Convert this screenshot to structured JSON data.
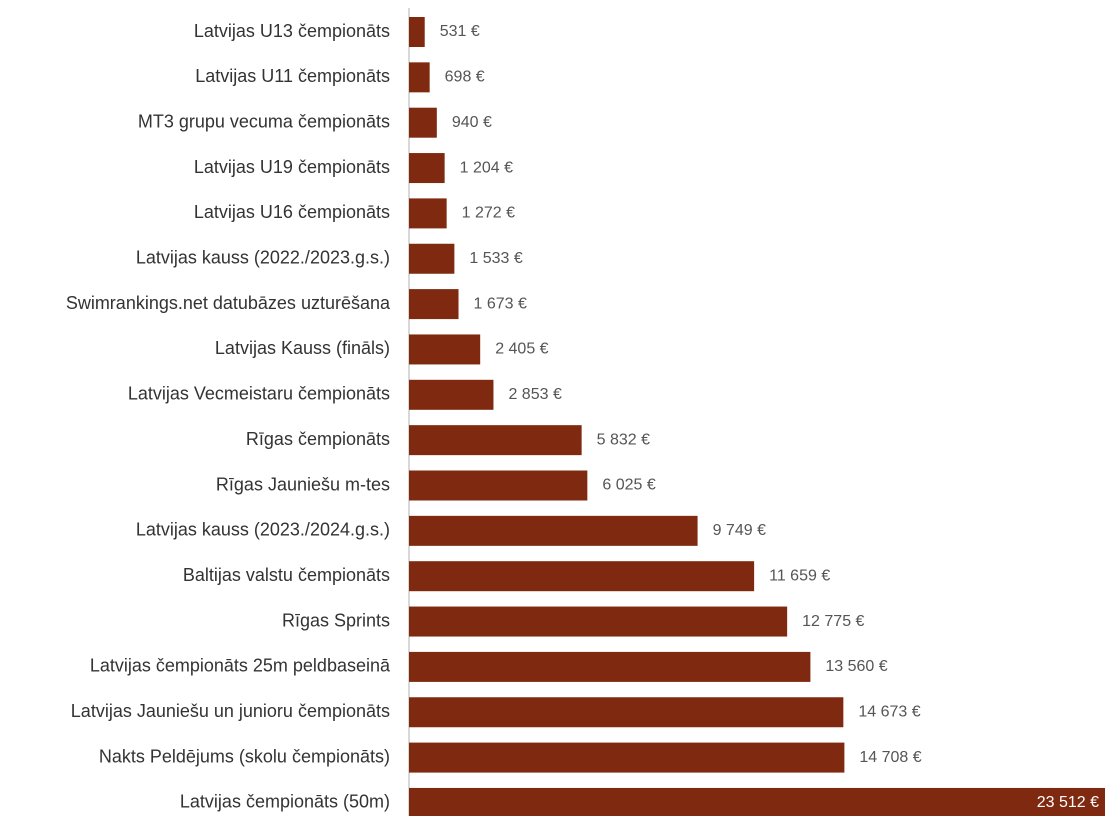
{
  "chart_data": {
    "type": "bar",
    "orientation": "horizontal",
    "color": "#7f2a10",
    "categories": [
      "Latvijas U13 čempionāts",
      "Latvijas U11 čempionāts",
      "MT3 grupu vecuma čempionāts",
      "Latvijas U19 čempionāts",
      "Latvijas U16 čempionāts",
      "Latvijas kauss (2022./2023.g.s.)",
      "Swimrankings.net datubāzes uzturēšana",
      "Latvijas Kauss (fināls)",
      "Latvijas Vecmeistaru čempionāts",
      "Rīgas čempionāts",
      "Rīgas Jauniešu m-tes",
      "Latvijas kauss (2023./2024.g.s.)",
      "Baltijas valstu čempionāts",
      "Rīgas Sprints",
      "Latvijas čempionāts 25m peldbaseinā",
      "Latvijas Jauniešu un junioru čempionāts",
      "Nakts Peldējums (skolu čempionāts)",
      "Latvijas čempionāts (50m)"
    ],
    "values": [
      531,
      698,
      940,
      1204,
      1272,
      1533,
      1673,
      2405,
      2853,
      5832,
      6025,
      9749,
      11659,
      12775,
      13560,
      14673,
      14708,
      23512
    ],
    "value_labels": [
      "531 €",
      "698 €",
      "940 €",
      "1 204 €",
      "1 272 €",
      "1 533 €",
      "1 673 €",
      "2 405 €",
      "2 853 €",
      "5 832 €",
      "6 025 €",
      "9 749 €",
      "11 659 €",
      "12 775 €",
      "13 560 €",
      "14 673 €",
      "14 708 €",
      "23 512 €"
    ],
    "xlim": [
      0,
      23512
    ]
  }
}
